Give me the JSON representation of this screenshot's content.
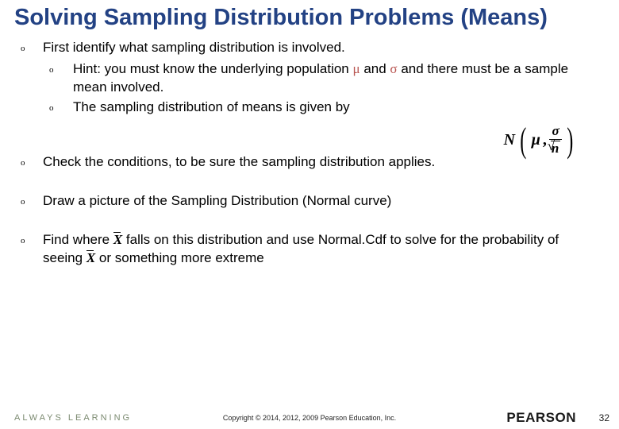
{
  "title": "Solving Sampling Distribution Problems (Means)",
  "bullets": {
    "b1": "First identify what sampling distribution is involved.",
    "b1a_pre": "Hint: you must know the underlying population ",
    "b1a_mu": "μ",
    "b1a_mid": " and ",
    "b1a_sigma": "σ",
    "b1a_post": " and there must be a sample mean involved.",
    "b1b": "The sampling distribution of means is given by",
    "b2": "Check the conditions, to be sure the sampling distribution applies.",
    "b3": "Draw a picture of the Sampling Distribution (Normal curve)",
    "b4_pre": "Find where ",
    "b4_x1": "X",
    "b4_mid": " falls on this distribution and use Normal.Cdf to solve for the probability of seeing ",
    "b4_x2": "X",
    "b4_post": " or something more extreme"
  },
  "formula": {
    "N": "N",
    "mu": "μ",
    "comma": ",",
    "sigma": "σ",
    "n": "n"
  },
  "footer": {
    "always": "ALWAYS LEARNING",
    "copyright": "Copyright © 2014, 2012, 2009 Pearson Education, Inc.",
    "brand": "PEARSON",
    "pagenum": "32"
  },
  "colors": {
    "title": "#234284",
    "greek": "#b85450",
    "text": "#000000",
    "always": "#7b8a70"
  }
}
